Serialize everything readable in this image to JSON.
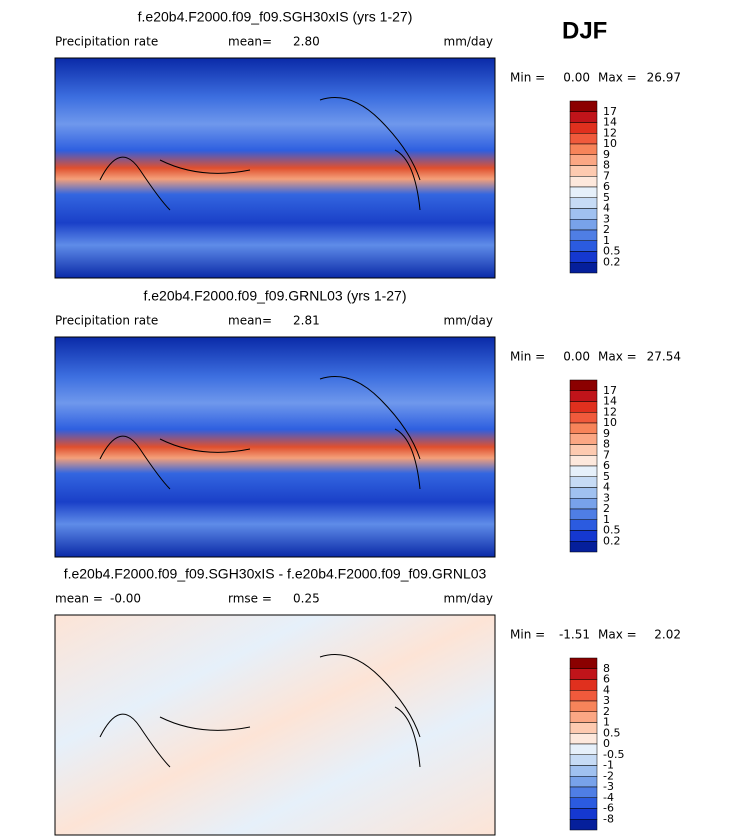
{
  "title": "DJF",
  "panels": [
    {
      "title": "f.e20b4.F2000.f09_f09.SGH30xIS (yrs 1-27)",
      "left_label": "Precipitation rate",
      "stat_label": "mean=",
      "stat_value": "2.80",
      "units": "mm/day",
      "min_label": "Min =",
      "min": "0.00",
      "max_label": "Max =",
      "max": "26.97",
      "colorbar": [
        "17",
        "14",
        "12",
        "10",
        "9",
        "8",
        "7",
        "6",
        "5",
        "4",
        "3",
        "2",
        "1",
        "0.5",
        "0.2"
      ]
    },
    {
      "title": "f.e20b4.F2000.f09_f09.GRNL03 (yrs 1-27)",
      "left_label": "Precipitation rate",
      "stat_label": "mean=",
      "stat_value": "2.81",
      "units": "mm/day",
      "min_label": "Min =",
      "min": "0.00",
      "max_label": "Max =",
      "max": "27.54",
      "colorbar": [
        "17",
        "14",
        "12",
        "10",
        "9",
        "8",
        "7",
        "6",
        "5",
        "4",
        "3",
        "2",
        "1",
        "0.5",
        "0.2"
      ]
    },
    {
      "title": "f.e20b4.F2000.f09_f09.SGH30xIS - f.e20b4.F2000.f09_f09.GRNL03",
      "left_label": "mean =",
      "left_value": "-0.00",
      "stat_label": "rmse =",
      "stat_value": "0.25",
      "units": "mm/day",
      "min_label": "Min =",
      "min": "-1.51",
      "max_label": "Max =",
      "max": "2.02",
      "colorbar": [
        "8",
        "6",
        "4",
        "3",
        "2",
        "1",
        "0.5",
        "0",
        "-0.5",
        "-1",
        "-2",
        "-3",
        "-4",
        "-6",
        "-8"
      ]
    }
  ]
}
